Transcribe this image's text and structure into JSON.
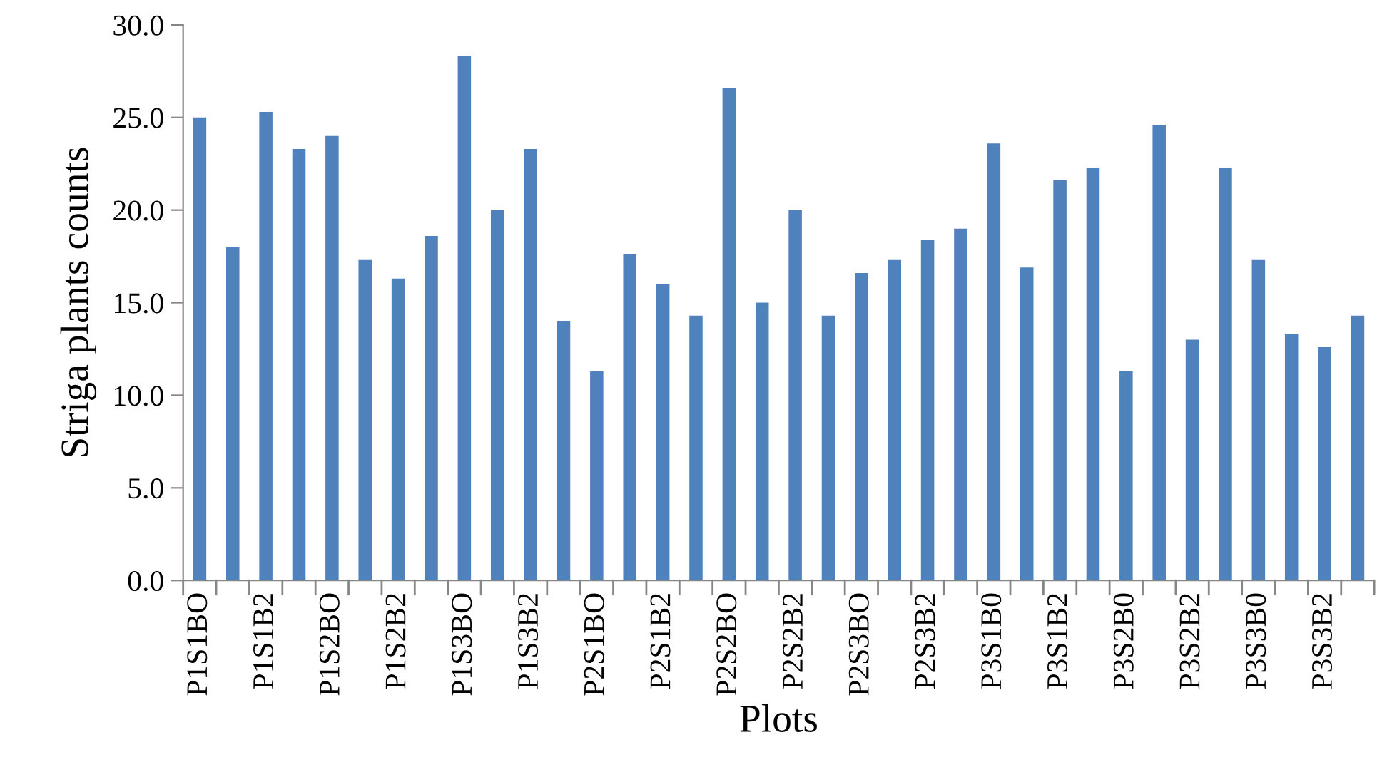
{
  "chart_data": {
    "type": "bar",
    "xlabel": "Plots",
    "ylabel": "Striga plants counts",
    "categories": [
      "P1S1BO",
      null,
      "P1S1B2",
      null,
      "P1S2BO",
      null,
      "P1S2B2",
      null,
      "P1S3BO",
      null,
      "P1S3B2",
      null,
      "P2S1BO",
      null,
      "P2S1B2",
      null,
      "P2S2BO",
      null,
      "P2S2B2",
      null,
      "P2S3BO",
      null,
      "P2S3B2",
      null,
      "P3S1B0",
      null,
      "P3S1B2",
      null,
      "P3S2B0",
      null,
      "P3S2B2",
      null,
      "P3S3B0",
      null,
      "P3S3B2",
      null
    ],
    "values": [
      25.0,
      18.0,
      25.3,
      23.3,
      24.0,
      17.3,
      16.3,
      18.6,
      28.3,
      20.0,
      23.3,
      14.0,
      11.3,
      17.6,
      16.0,
      14.3,
      26.6,
      15.0,
      20.0,
      14.3,
      16.6,
      17.3,
      18.4,
      19.0,
      23.6,
      16.9,
      21.6,
      22.3,
      11.3,
      24.6,
      13.0,
      22.3,
      17.3,
      13.3,
      12.6,
      14.3
    ],
    "color": "#4f81bd",
    "ylim": [
      0,
      30
    ],
    "yticks": [
      {
        "value": 0,
        "label": "0.0"
      },
      {
        "value": 5,
        "label": "5.0"
      },
      {
        "value": 10,
        "label": "10.0"
      },
      {
        "value": 15,
        "label": "15.0"
      },
      {
        "value": 20,
        "label": "20.0"
      },
      {
        "value": 25,
        "label": "25.0"
      },
      {
        "value": 30,
        "label": "30.0"
      }
    ],
    "grid": false,
    "legend": false
  }
}
